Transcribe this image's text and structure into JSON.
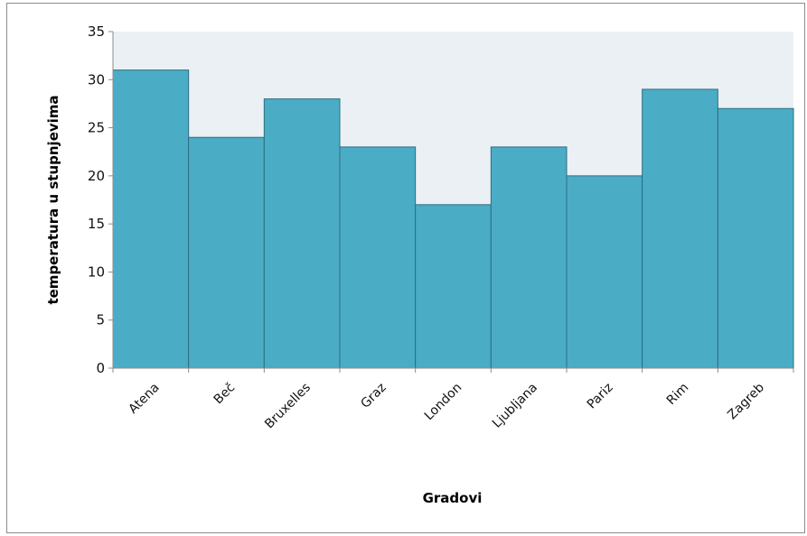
{
  "chart_data": {
    "type": "bar",
    "title": "",
    "xlabel": "Gradovi",
    "ylabel": "temperatura u stupnjevima",
    "categories": [
      "Atena",
      "Beč",
      "Bruxelles",
      "Graz",
      "London",
      "Ljubljana",
      "Pariz",
      "Rim",
      "Zagreb"
    ],
    "values": [
      31,
      24,
      28,
      23,
      17,
      23,
      20,
      29,
      27
    ],
    "ylim": [
      0,
      35
    ],
    "yticks": [
      "0",
      "5",
      "10",
      "15",
      "20",
      "25",
      "30",
      "35"
    ],
    "grid": false,
    "legend": "none",
    "colors": {
      "bar_fill": "#4bacc6",
      "bar_stroke": "#2c6f82",
      "plot_background": "#eaf0f4",
      "axis": "#8c8c8c"
    }
  }
}
